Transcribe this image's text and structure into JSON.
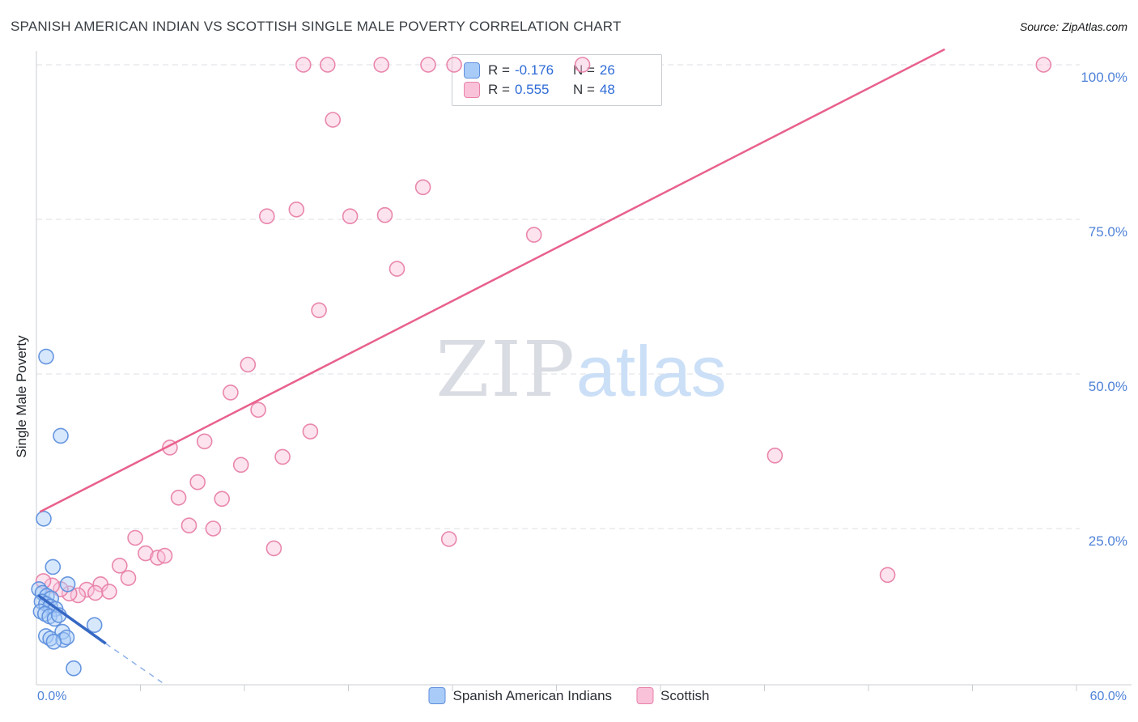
{
  "header": {
    "title": "SPANISH AMERICAN INDIAN VS SCOTTISH SINGLE MALE POVERTY CORRELATION CHART",
    "source": "Source: ZipAtlas.com"
  },
  "watermark": {
    "zip": "ZIP",
    "atlas": "atlas"
  },
  "axes": {
    "y_label": "Single Male Poverty",
    "y_ticks": [
      "100.0%",
      "75.0%",
      "50.0%",
      "25.0%"
    ],
    "x_min_label": "0.0%",
    "x_max_label": "60.0%"
  },
  "legend_box": {
    "rows": [
      {
        "r_label": "R =",
        "r_value": "-0.176",
        "n_label": "N =",
        "n_value": "26"
      },
      {
        "r_label": "R =",
        "r_value": "0.555",
        "n_label": "N =",
        "n_value": "48"
      }
    ]
  },
  "bottom_legend": {
    "items": [
      {
        "label": "Spanish American Indians"
      },
      {
        "label": "Scottish"
      }
    ]
  },
  "chart_data": {
    "type": "scatter",
    "title": "Spanish American Indian vs Scottish Single Male Poverty Correlation",
    "xlabel": "",
    "ylabel": "Single Male Poverty",
    "xlim": [
      0,
      60
    ],
    "ylim": [
      0,
      105
    ],
    "x_ticks": [
      6,
      12,
      18,
      24,
      30,
      36,
      42,
      48,
      54,
      60
    ],
    "y_grid": [
      25,
      50,
      75,
      100
    ],
    "y_grid_labels": [
      "25.0%",
      "50.0%",
      "75.0%",
      "100.0%"
    ],
    "grid": true,
    "legend_position": "top-center",
    "series": [
      {
        "name": "Spanish American Indians",
        "r": -0.176,
        "n": 26,
        "fill": "#a9cbf8",
        "stroke": "#5f90dd",
        "points": [
          [
            0.56,
            52.8
          ],
          [
            1.4,
            40.0
          ],
          [
            0.42,
            26.6
          ],
          [
            0.95,
            18.8
          ],
          [
            1.8,
            16.0
          ],
          [
            0.15,
            15.2
          ],
          [
            0.35,
            14.6
          ],
          [
            0.6,
            14.1
          ],
          [
            0.85,
            13.7
          ],
          [
            0.3,
            13.2
          ],
          [
            0.55,
            12.8
          ],
          [
            0.8,
            12.4
          ],
          [
            1.1,
            12.0
          ],
          [
            0.25,
            11.6
          ],
          [
            0.5,
            11.2
          ],
          [
            0.75,
            10.8
          ],
          [
            1.05,
            10.4
          ],
          [
            1.3,
            11.0
          ],
          [
            3.35,
            9.4
          ],
          [
            1.5,
            8.3
          ],
          [
            0.55,
            7.6
          ],
          [
            0.8,
            7.2
          ],
          [
            1.55,
            7.0
          ],
          [
            1.75,
            7.4
          ],
          [
            1.0,
            6.7
          ],
          [
            2.15,
            2.4
          ]
        ]
      },
      {
        "name": "Scottish",
        "r": 0.555,
        "n": 48,
        "fill": "#f9c2d9",
        "stroke": "#e881a8",
        "points": [
          [
            15.4,
            100
          ],
          [
            16.8,
            100
          ],
          [
            19.9,
            100
          ],
          [
            22.6,
            100
          ],
          [
            24.1,
            100
          ],
          [
            31.5,
            100
          ],
          [
            58.1,
            100
          ],
          [
            17.1,
            91.1
          ],
          [
            22.3,
            80.2
          ],
          [
            13.3,
            75.5
          ],
          [
            15.0,
            76.6
          ],
          [
            18.1,
            75.5
          ],
          [
            20.1,
            75.7
          ],
          [
            28.7,
            72.5
          ],
          [
            20.8,
            67.0
          ],
          [
            16.3,
            60.3
          ],
          [
            12.2,
            51.5
          ],
          [
            11.2,
            47.0
          ],
          [
            12.8,
            44.2
          ],
          [
            15.8,
            40.7
          ],
          [
            9.7,
            39.1
          ],
          [
            7.7,
            38.1
          ],
          [
            14.2,
            36.6
          ],
          [
            11.8,
            35.3
          ],
          [
            42.6,
            36.8
          ],
          [
            9.3,
            32.5
          ],
          [
            8.2,
            30.0
          ],
          [
            10.7,
            29.8
          ],
          [
            8.8,
            25.5
          ],
          [
            10.2,
            25.0
          ],
          [
            5.7,
            23.5
          ],
          [
            23.8,
            23.3
          ],
          [
            13.7,
            21.8
          ],
          [
            6.3,
            21.0
          ],
          [
            7.0,
            20.3
          ],
          [
            7.4,
            20.6
          ],
          [
            4.8,
            19.0
          ],
          [
            49.1,
            17.5
          ],
          [
            5.3,
            17.0
          ],
          [
            3.7,
            16.0
          ],
          [
            2.9,
            15.1
          ],
          [
            3.4,
            14.6
          ],
          [
            4.2,
            14.8
          ],
          [
            2.4,
            14.2
          ],
          [
            1.9,
            14.5
          ],
          [
            1.4,
            15.2
          ],
          [
            0.9,
            15.8
          ],
          [
            0.4,
            16.5
          ]
        ]
      }
    ],
    "trend_lines": [
      {
        "series": "Spanish American Indians",
        "color": "#3668c4",
        "dashed_color": "#8fb2e8",
        "segments": [
          {
            "x1": 0.1,
            "y1": 14.2,
            "x2": 4.0,
            "y2": 6.4,
            "style": "solid",
            "width": 3.5
          },
          {
            "x1": 4.0,
            "y1": 6.4,
            "x2": 7.25,
            "y2": 0.1,
            "style": "dashed",
            "width": 1.5
          }
        ]
      },
      {
        "series": "Scottish",
        "color": "#e8618c",
        "segments": [
          {
            "x1": 0.2,
            "y1": 27.7,
            "x2": 52.4,
            "y2": 102.5,
            "style": "solid",
            "width": 2.5
          }
        ]
      }
    ]
  }
}
